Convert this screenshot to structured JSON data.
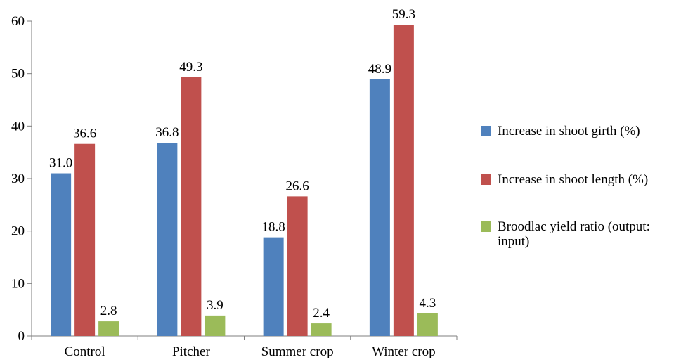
{
  "chart_data": {
    "type": "bar",
    "categories": [
      "Control",
      "Pitcher",
      "Summer crop",
      "Winter crop"
    ],
    "series": [
      {
        "name": "Increase in shoot girth (%)",
        "values": [
          31.0,
          36.8,
          18.8,
          48.9
        ],
        "labels": [
          "31.0",
          "36.8",
          "18.8",
          "48.9"
        ],
        "color": "#4F81BD"
      },
      {
        "name": "Increase in shoot length (%)",
        "values": [
          36.6,
          49.3,
          26.6,
          59.3
        ],
        "labels": [
          "36.6",
          "49.3",
          "26.6",
          "59.3"
        ],
        "color": "#C0504D"
      },
      {
        "name": "Broodlac yield ratio (output: input)",
        "values": [
          2.8,
          3.9,
          2.4,
          4.3
        ],
        "labels": [
          "2.8",
          "3.9",
          "2.4",
          "4.3"
        ],
        "color": "#9BBB59"
      }
    ],
    "ylim": [
      0,
      60
    ],
    "yticks": [
      "0",
      "10",
      "20",
      "30",
      "40",
      "50",
      "60"
    ],
    "grid": false,
    "legend_position": "right"
  }
}
